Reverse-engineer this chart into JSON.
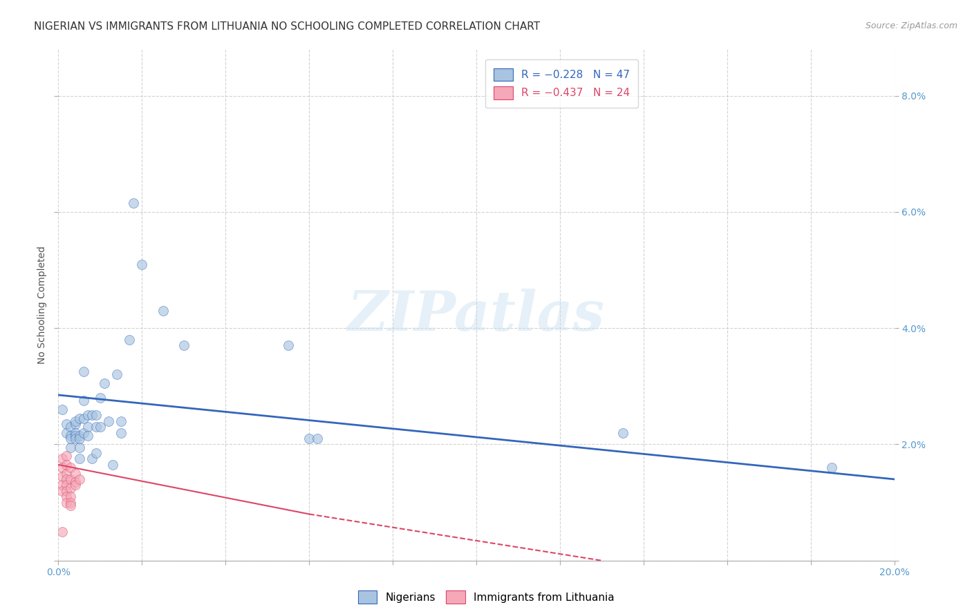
{
  "title": "NIGERIAN VS IMMIGRANTS FROM LITHUANIA NO SCHOOLING COMPLETED CORRELATION CHART",
  "source": "Source: ZipAtlas.com",
  "ylabel": "No Schooling Completed",
  "xlim": [
    0.0,
    0.2
  ],
  "ylim": [
    0.0,
    0.088
  ],
  "xticks": [
    0.0,
    0.02,
    0.04,
    0.06,
    0.08,
    0.1,
    0.12,
    0.14,
    0.16,
    0.18,
    0.2
  ],
  "yticks": [
    0.0,
    0.02,
    0.04,
    0.06,
    0.08
  ],
  "legend_blue": "R = −0.228   N = 47",
  "legend_pink": "R = −0.437   N = 24",
  "watermark": "ZIPatlas",
  "blue_scatter": [
    [
      0.001,
      0.026
    ],
    [
      0.002,
      0.0235
    ],
    [
      0.002,
      0.022
    ],
    [
      0.003,
      0.023
    ],
    [
      0.003,
      0.0215
    ],
    [
      0.003,
      0.0195
    ],
    [
      0.003,
      0.021
    ],
    [
      0.004,
      0.0235
    ],
    [
      0.004,
      0.022
    ],
    [
      0.004,
      0.024
    ],
    [
      0.004,
      0.0215
    ],
    [
      0.004,
      0.021
    ],
    [
      0.005,
      0.0195
    ],
    [
      0.005,
      0.0215
    ],
    [
      0.005,
      0.021
    ],
    [
      0.005,
      0.0245
    ],
    [
      0.005,
      0.0175
    ],
    [
      0.006,
      0.0275
    ],
    [
      0.006,
      0.0245
    ],
    [
      0.006,
      0.0325
    ],
    [
      0.006,
      0.022
    ],
    [
      0.007,
      0.025
    ],
    [
      0.007,
      0.023
    ],
    [
      0.007,
      0.0215
    ],
    [
      0.008,
      0.025
    ],
    [
      0.008,
      0.0175
    ],
    [
      0.009,
      0.025
    ],
    [
      0.009,
      0.023
    ],
    [
      0.009,
      0.0185
    ],
    [
      0.01,
      0.028
    ],
    [
      0.01,
      0.023
    ],
    [
      0.011,
      0.0305
    ],
    [
      0.012,
      0.024
    ],
    [
      0.013,
      0.0165
    ],
    [
      0.014,
      0.032
    ],
    [
      0.015,
      0.024
    ],
    [
      0.015,
      0.022
    ],
    [
      0.017,
      0.038
    ],
    [
      0.018,
      0.0615
    ],
    [
      0.02,
      0.051
    ],
    [
      0.025,
      0.043
    ],
    [
      0.03,
      0.037
    ],
    [
      0.055,
      0.037
    ],
    [
      0.06,
      0.021
    ],
    [
      0.062,
      0.021
    ],
    [
      0.135,
      0.022
    ],
    [
      0.185,
      0.016
    ]
  ],
  "pink_scatter": [
    [
      0.001,
      0.0175
    ],
    [
      0.001,
      0.016
    ],
    [
      0.001,
      0.0145
    ],
    [
      0.001,
      0.013
    ],
    [
      0.001,
      0.012
    ],
    [
      0.002,
      0.018
    ],
    [
      0.002,
      0.0165
    ],
    [
      0.002,
      0.015
    ],
    [
      0.002,
      0.014
    ],
    [
      0.002,
      0.013
    ],
    [
      0.002,
      0.012
    ],
    [
      0.002,
      0.011
    ],
    [
      0.002,
      0.01
    ],
    [
      0.003,
      0.016
    ],
    [
      0.003,
      0.014
    ],
    [
      0.003,
      0.0125
    ],
    [
      0.003,
      0.011
    ],
    [
      0.003,
      0.01
    ],
    [
      0.003,
      0.0095
    ],
    [
      0.004,
      0.015
    ],
    [
      0.004,
      0.0135
    ],
    [
      0.004,
      0.013
    ],
    [
      0.005,
      0.014
    ],
    [
      0.001,
      0.005
    ]
  ],
  "blue_line": [
    [
      0.0,
      0.0285
    ],
    [
      0.2,
      0.014
    ]
  ],
  "pink_line_solid": [
    [
      0.0,
      0.0165
    ],
    [
      0.06,
      0.008
    ]
  ],
  "pink_line_dashed": [
    [
      0.06,
      0.008
    ],
    [
      0.13,
      0.0
    ]
  ],
  "blue_color": "#a8c4e0",
  "pink_color": "#f4a8b8",
  "blue_line_color": "#3366bb",
  "pink_line_color": "#dd4466",
  "background_color": "#ffffff",
  "grid_color": "#cccccc",
  "title_fontsize": 11,
  "axis_label_fontsize": 10,
  "tick_fontsize": 10,
  "tick_color": "#5599cc",
  "scatter_size": 100,
  "scatter_alpha": 0.65
}
